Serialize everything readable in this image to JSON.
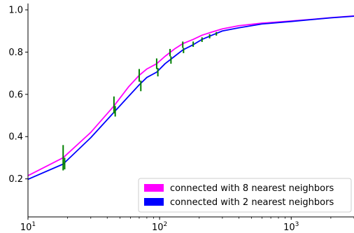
{
  "chart_data": {
    "type": "line",
    "title": "",
    "xlabel": "",
    "ylabel": "",
    "xscale": "log",
    "xlim": [
      10,
      3000
    ],
    "ylim": [
      0.02,
      1.03
    ],
    "grid": false,
    "legend_placement": "lower-right",
    "x_ticks": [
      {
        "value": 10,
        "base": "10",
        "exp": "1"
      },
      {
        "value": 100,
        "base": "10",
        "exp": "2"
      },
      {
        "value": 1000,
        "base": "10",
        "exp": "3"
      }
    ],
    "y_ticks": [
      {
        "value": 0.2,
        "label": "0.2"
      },
      {
        "value": 0.4,
        "label": "0.4"
      },
      {
        "value": 0.6,
        "label": "0.6"
      },
      {
        "value": 0.8,
        "label": "0.8"
      },
      {
        "value": 1.0,
        "label": "1.0"
      }
    ],
    "series": [
      {
        "name": "connected with 8 nearest neighbors",
        "color": "#ff00ff",
        "x": [
          10,
          18.5,
          30,
          45,
          58,
          70,
          80,
          95,
          110,
          130,
          150,
          180,
          210,
          250,
          300,
          400,
          600,
          1000,
          1500,
          2000,
          3000
        ],
        "y": [
          0.215,
          0.3,
          0.42,
          0.545,
          0.635,
          0.69,
          0.72,
          0.745,
          0.78,
          0.815,
          0.84,
          0.86,
          0.88,
          0.895,
          0.91,
          0.925,
          0.937,
          0.947,
          0.956,
          0.963,
          0.971
        ]
      },
      {
        "name": "connected with 2 nearest neighbors",
        "color": "#0000ff",
        "x": [
          10,
          18.5,
          30,
          45,
          58,
          70,
          80,
          95,
          110,
          130,
          150,
          180,
          210,
          250,
          300,
          400,
          600,
          1000,
          1500,
          2000,
          3000
        ],
        "y": [
          0.198,
          0.27,
          0.395,
          0.515,
          0.59,
          0.645,
          0.68,
          0.705,
          0.745,
          0.78,
          0.81,
          0.835,
          0.86,
          0.88,
          0.9,
          0.915,
          0.933,
          0.945,
          0.955,
          0.962,
          0.97
        ]
      }
    ],
    "error_bars": {
      "color": "#008000",
      "bars": [
        {
          "x": 18.5,
          "y_low": 0.24,
          "y_high": 0.36
        },
        {
          "x": 19.0,
          "y_low": 0.245,
          "y_high": 0.3
        },
        {
          "x": 45,
          "y_low": 0.51,
          "y_high": 0.59
        },
        {
          "x": 46,
          "y_low": 0.495,
          "y_high": 0.545
        },
        {
          "x": 70,
          "y_low": 0.66,
          "y_high": 0.72
        },
        {
          "x": 72,
          "y_low": 0.615,
          "y_high": 0.665
        },
        {
          "x": 95,
          "y_low": 0.72,
          "y_high": 0.77
        },
        {
          "x": 97,
          "y_low": 0.685,
          "y_high": 0.725
        },
        {
          "x": 120,
          "y_low": 0.78,
          "y_high": 0.815
        },
        {
          "x": 122,
          "y_low": 0.745,
          "y_high": 0.78
        },
        {
          "x": 150,
          "y_low": 0.82,
          "y_high": 0.85
        },
        {
          "x": 152,
          "y_low": 0.795,
          "y_high": 0.82
        },
        {
          "x": 180,
          "y_low": 0.825,
          "y_high": 0.85
        },
        {
          "x": 210,
          "y_low": 0.848,
          "y_high": 0.87
        },
        {
          "x": 240,
          "y_low": 0.865,
          "y_high": 0.885
        },
        {
          "x": 270,
          "y_low": 0.878,
          "y_high": 0.895
        }
      ]
    },
    "legend": [
      {
        "label": "connected with 8 nearest neighbors",
        "color": "#ff00ff"
      },
      {
        "label": "connected with 2 nearest neighbors",
        "color": "#0000ff"
      }
    ]
  }
}
